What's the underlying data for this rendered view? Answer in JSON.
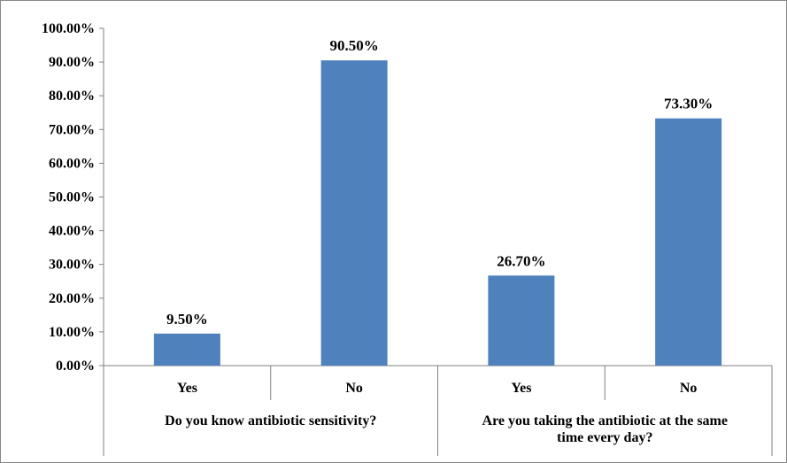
{
  "chart_data": {
    "type": "bar",
    "ylim": [
      0,
      100
    ],
    "y_ticks": [
      "0.00%",
      "10.00%",
      "20.00%",
      "30.00%",
      "40.00%",
      "50.00%",
      "60.00%",
      "70.00%",
      "80.00%",
      "90.00%",
      "100.00%"
    ],
    "categories": [
      "Yes",
      "No",
      "Yes",
      "No"
    ],
    "values": [
      9.5,
      90.5,
      26.7,
      73.3
    ],
    "data_labels": [
      "9.50%",
      "90.50%",
      "26.70%",
      "73.30%"
    ],
    "groups": [
      {
        "label_lines": [
          "Do you know antibiotic sensitivity?"
        ]
      },
      {
        "label_lines": [
          "Are you taking the antibiotic at the same",
          "time every day?"
        ]
      }
    ],
    "bar_color": "#4F81BD",
    "grid": false,
    "legend": "none"
  }
}
